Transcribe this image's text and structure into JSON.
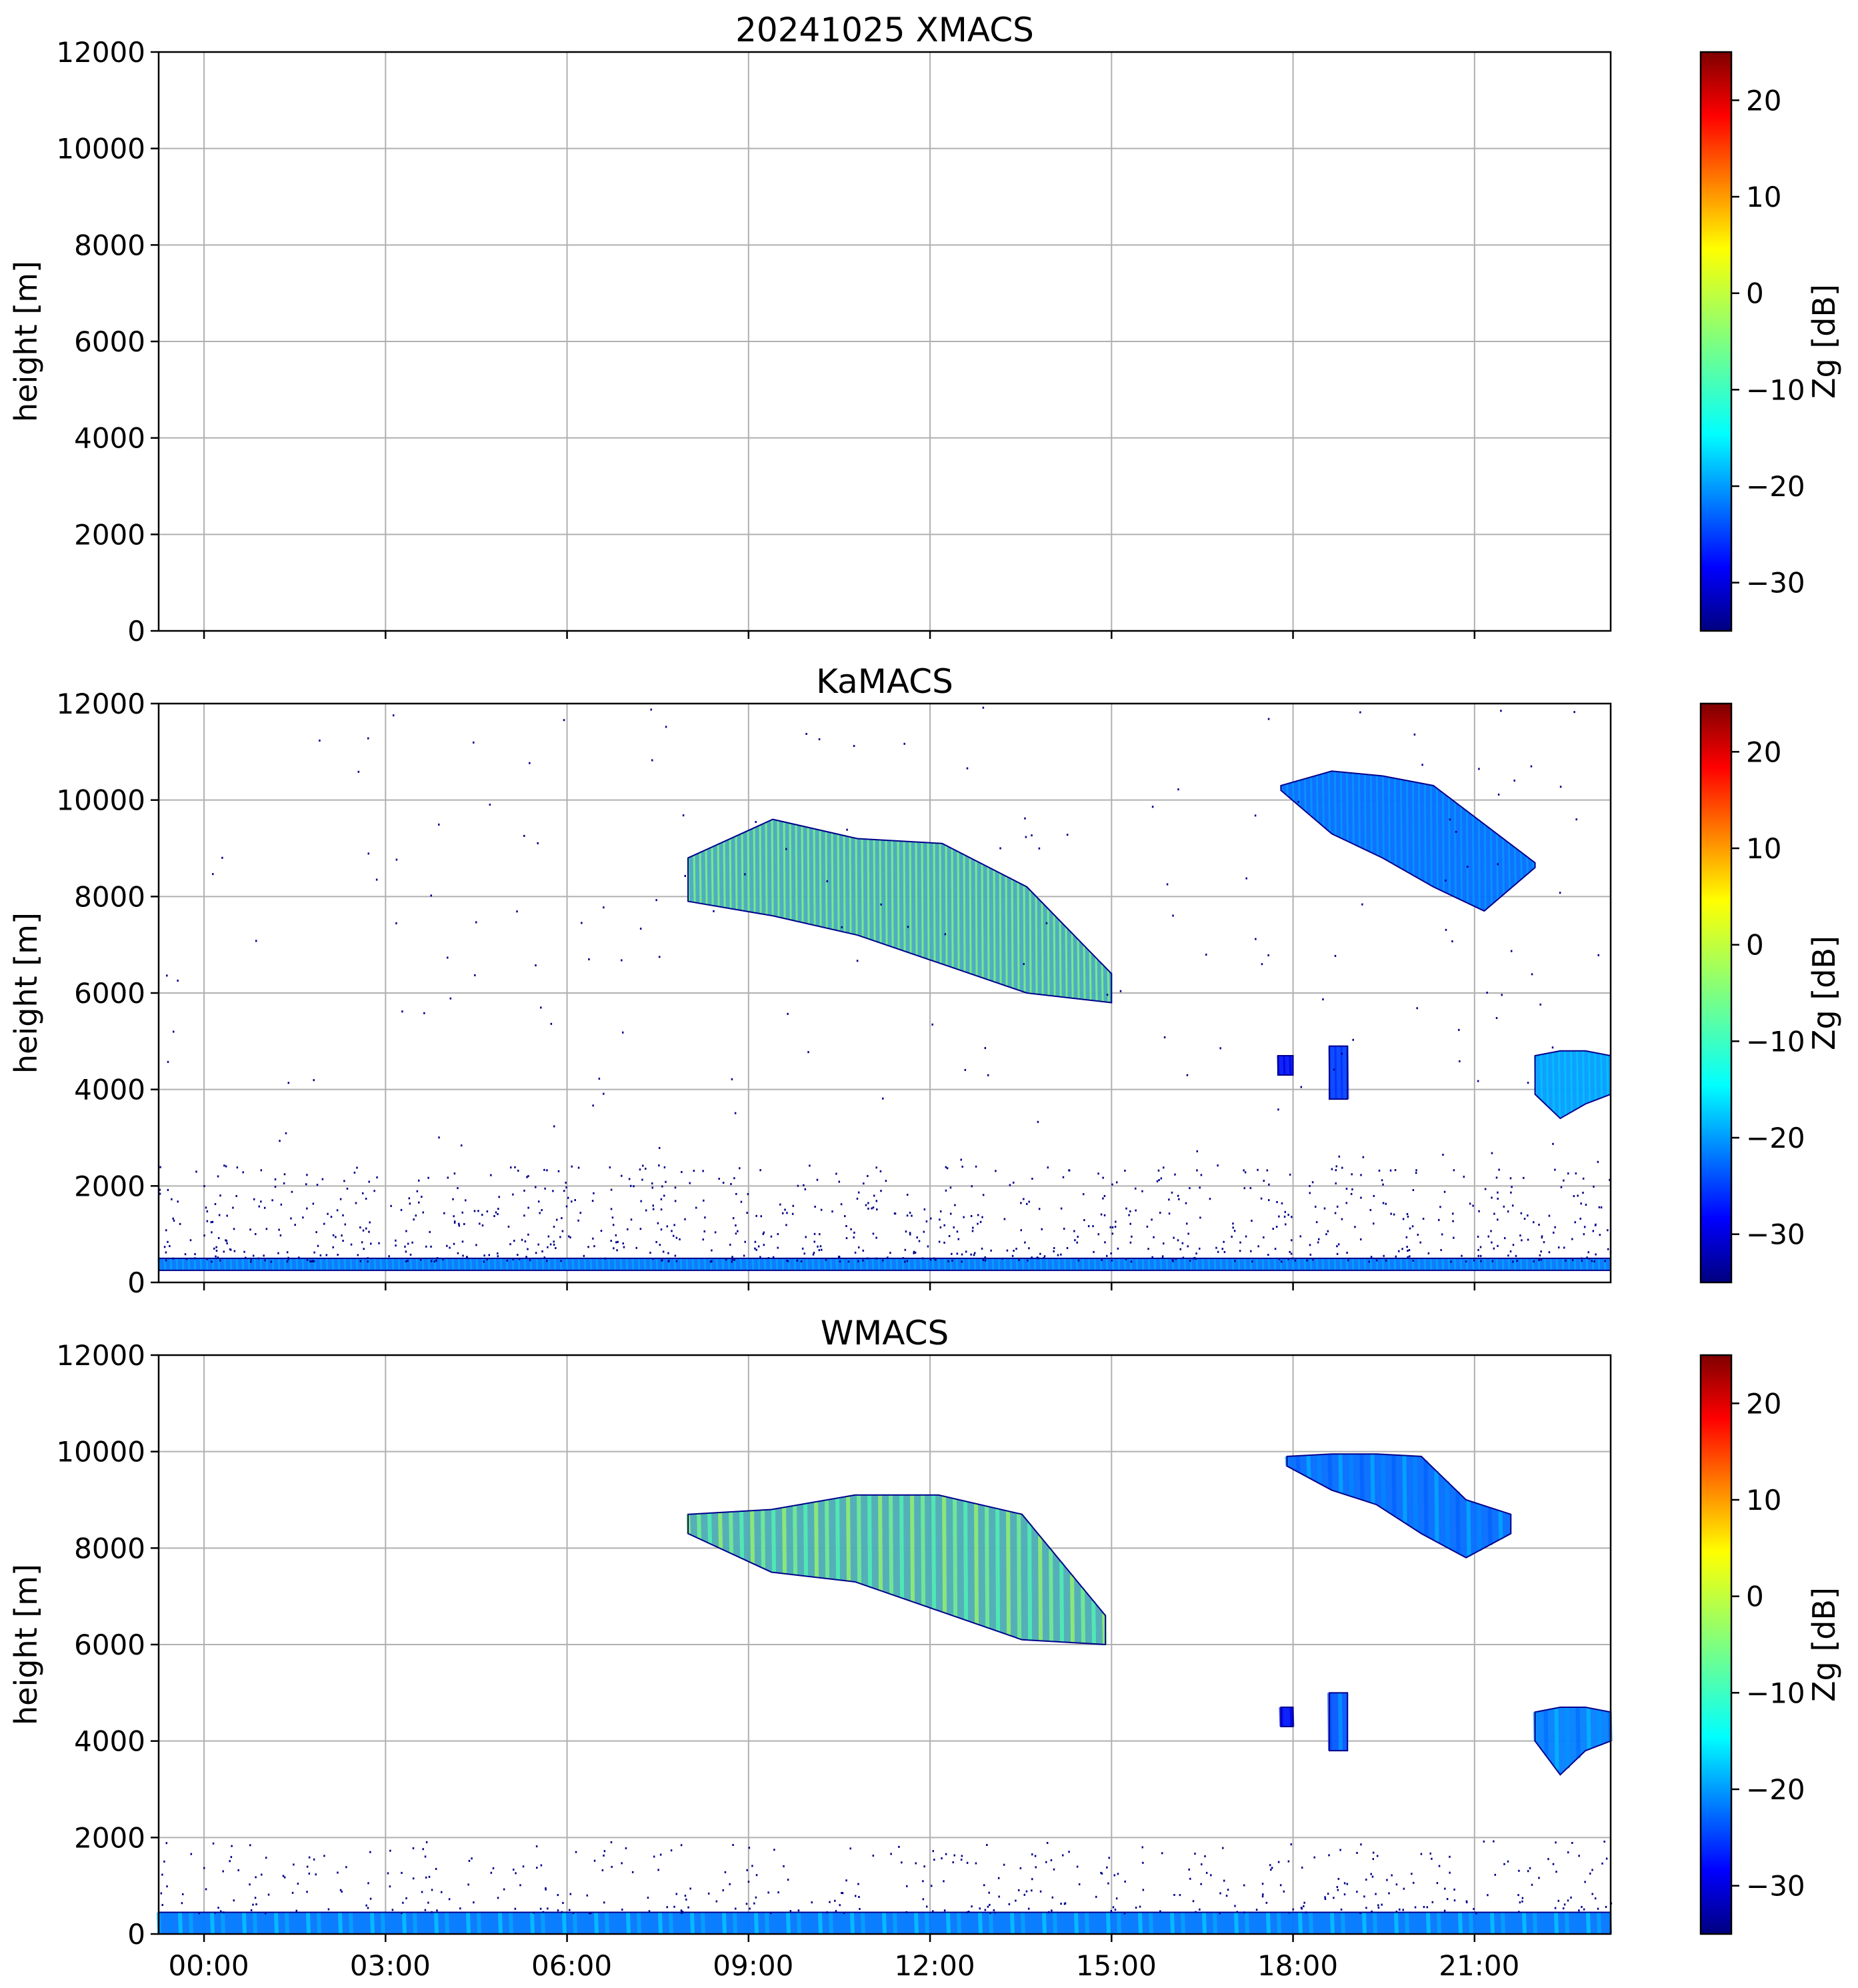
{
  "chart_data": [
    {
      "type": "heatmap",
      "title": "20241025 XMACS",
      "ylabel": "height [m]",
      "ylim": [
        0,
        12000
      ],
      "yticks": [
        "0",
        "2000",
        "4000",
        "6000",
        "8000",
        "10000",
        "12000"
      ],
      "xlim_hours": [
        -0.75,
        23.25
      ],
      "xticks": [
        0,
        3,
        6,
        9,
        12,
        15,
        18,
        21
      ],
      "grid": true,
      "colorbar": {
        "label": "Zg [dB]",
        "range": [
          -35,
          25
        ],
        "ticks": [
          "20",
          "10",
          "0",
          "−10",
          "−20",
          "−30"
        ]
      },
      "echoes": []
    },
    {
      "type": "heatmap",
      "title": "KaMACS",
      "ylabel": "height [m]",
      "ylim": [
        0,
        12000
      ],
      "yticks": [
        "0",
        "2000",
        "4000",
        "6000",
        "8000",
        "10000",
        "12000"
      ],
      "xlim_hours": [
        -0.75,
        23.25
      ],
      "xticks": [
        0,
        3,
        6,
        9,
        12,
        15,
        18,
        21
      ],
      "grid": true,
      "colorbar": {
        "label": "Zg [dB]",
        "range": [
          -35,
          25
        ],
        "ticks": [
          "20",
          "10",
          "0",
          "−10",
          "−20",
          "−30"
        ]
      },
      "echoes": [
        {
          "name": "cirrus-band-morning",
          "t": [
            8.0,
            15.0
          ],
          "top": [
            8800,
            9600,
            9200,
            9100,
            8200,
            6400
          ],
          "bottom": [
            7900,
            7600,
            7200,
            6600,
            6000,
            5800
          ],
          "max_dbz": -3
        },
        {
          "name": "cirrus-evening",
          "t": [
            17.8,
            22.0
          ],
          "top": [
            10300,
            10600,
            10500,
            10300,
            9500,
            8700
          ],
          "bottom": [
            10200,
            9300,
            8800,
            8200,
            7700,
            8600
          ],
          "max_dbz": -16
        },
        {
          "name": "mid-level-late",
          "t": [
            22.0,
            23.25
          ],
          "top": [
            4700,
            4800,
            4800,
            4700
          ],
          "bottom": [
            3900,
            3400,
            3700,
            3900
          ],
          "max_dbz": -11
        },
        {
          "name": "mid-level-small-1",
          "t": [
            17.75,
            18.0
          ],
          "top": [
            4700,
            4700
          ],
          "bottom": [
            4300,
            4300
          ],
          "max_dbz": -25
        },
        {
          "name": "mid-level-small-2",
          "t": [
            18.6,
            18.9
          ],
          "top": [
            4900,
            4900
          ],
          "bottom": [
            3800,
            3800
          ],
          "max_dbz": -20
        },
        {
          "name": "boundary-layer",
          "t": [
            -0.75,
            23.25
          ],
          "top": [
            500,
            500
          ],
          "bottom": [
            250,
            250
          ],
          "max_dbz": -15
        }
      ]
    },
    {
      "type": "heatmap",
      "title": "WMACS",
      "ylabel": "height [m]",
      "ylim": [
        0,
        12000
      ],
      "yticks": [
        "0",
        "2000",
        "4000",
        "6000",
        "8000",
        "10000",
        "12000"
      ],
      "xlim_hours": [
        -0.75,
        23.25
      ],
      "xticks": [
        0,
        3,
        6,
        9,
        12,
        15,
        18,
        21
      ],
      "xticklabels": [
        "00:00",
        "03:00",
        "06:00",
        "09:00",
        "12:00",
        "15:00",
        "18:00",
        "21:00"
      ],
      "grid": true,
      "colorbar": {
        "label": "Zg [dB]",
        "range": [
          -35,
          25
        ],
        "ticks": [
          "20",
          "10",
          "0",
          "−10",
          "−20",
          "−30"
        ]
      },
      "echoes": [
        {
          "name": "cirrus-band-morning",
          "t": [
            8.0,
            14.9
          ],
          "top": [
            8700,
            8800,
            9100,
            9100,
            8700,
            6600
          ],
          "bottom": [
            8300,
            7500,
            7300,
            6700,
            6100,
            6000
          ],
          "max_dbz": -2
        },
        {
          "name": "cirrus-evening",
          "t": [
            17.9,
            21.6
          ],
          "top": [
            9900,
            9950,
            9950,
            9900,
            9000,
            8700
          ],
          "bottom": [
            9700,
            9200,
            8900,
            8300,
            7800,
            8300
          ],
          "max_dbz": -16
        },
        {
          "name": "mid-level-late",
          "t": [
            22.0,
            23.25
          ],
          "top": [
            4600,
            4700,
            4700,
            4600
          ],
          "bottom": [
            4000,
            3300,
            3800,
            4000
          ],
          "max_dbz": -14
        },
        {
          "name": "mid-level-small-1",
          "t": [
            17.8,
            18.0
          ],
          "top": [
            4700,
            4700
          ],
          "bottom": [
            4300,
            4300
          ],
          "max_dbz": -25
        },
        {
          "name": "mid-level-small-2",
          "t": [
            18.6,
            18.9
          ],
          "top": [
            5000,
            5000
          ],
          "bottom": [
            3800,
            3800
          ],
          "max_dbz": -18
        },
        {
          "name": "boundary-layer",
          "t": [
            -0.75,
            23.25
          ],
          "top": [
            450,
            450
          ],
          "bottom": [
            0,
            0
          ],
          "max_dbz": -15
        }
      ]
    }
  ]
}
